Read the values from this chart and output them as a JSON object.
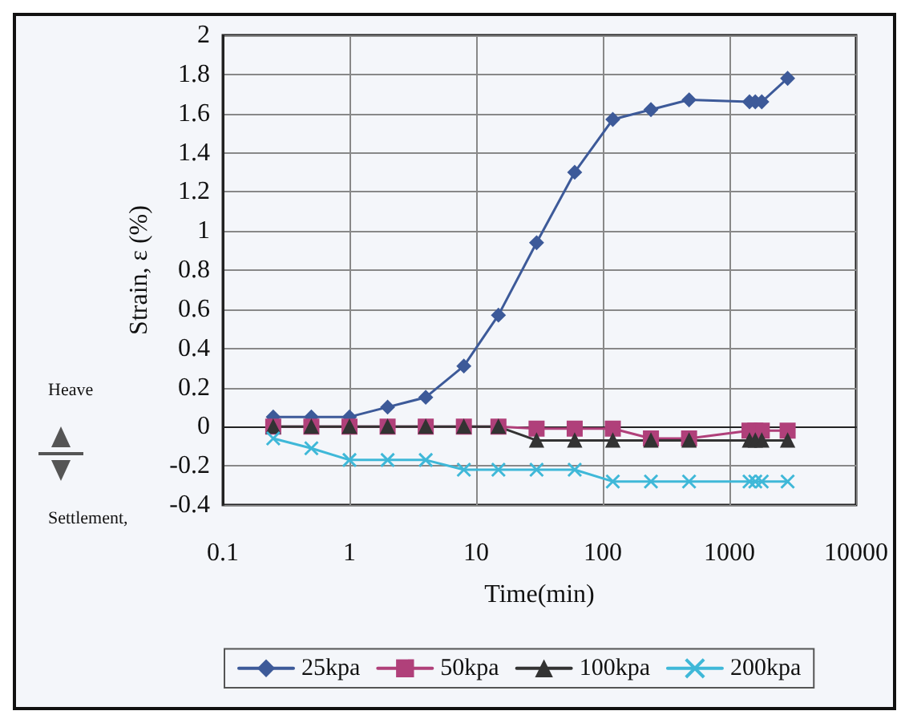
{
  "chart_data": {
    "type": "line",
    "xlabel": "Time(min)",
    "ylabel": "Strain, ε (%)",
    "annotations": [
      "Heave",
      "Settlement,"
    ],
    "x": [
      0.25,
      0.5,
      1,
      2,
      4,
      8,
      15,
      30,
      60,
      120,
      240,
      480,
      1440,
      1600,
      1800,
      2880
    ],
    "series": [
      {
        "name": "25kpa",
        "color": "#3d5a99",
        "marker": "diamond",
        "values": [
          0.05,
          0.05,
          0.05,
          0.1,
          0.15,
          0.31,
          0.57,
          0.94,
          1.3,
          1.57,
          1.62,
          1.67,
          1.66,
          1.66,
          1.66,
          1.78
        ]
      },
      {
        "name": "50kpa",
        "color": "#b0407a",
        "marker": "square",
        "values": [
          0,
          0,
          0,
          0,
          0,
          0,
          0,
          -0.01,
          -0.01,
          -0.01,
          -0.06,
          -0.06,
          -0.02,
          -0.02,
          -0.02,
          -0.02
        ]
      },
      {
        "name": "100kpa",
        "color": "#333333",
        "marker": "triangle",
        "values": [
          0,
          0,
          0,
          0,
          0,
          0,
          0,
          -0.07,
          -0.07,
          -0.07,
          -0.07,
          -0.07,
          -0.07,
          -0.07,
          -0.07,
          -0.07
        ]
      },
      {
        "name": "200kpa",
        "color": "#3fb8d8",
        "marker": "cross",
        "values": [
          -0.06,
          -0.11,
          -0.17,
          -0.17,
          -0.17,
          -0.22,
          -0.22,
          -0.22,
          -0.22,
          -0.28,
          -0.28,
          -0.28,
          -0.28,
          -0.28,
          -0.28,
          -0.28
        ]
      }
    ],
    "log": "x",
    "xlim": [
      0.1,
      10000
    ],
    "xticks": [
      0.1,
      1,
      10,
      100,
      1000,
      10000
    ],
    "ylim": [
      -0.4,
      2
    ],
    "yticks": [
      -0.4,
      -0.2,
      0,
      0.2,
      0.4,
      0.6,
      0.8,
      1,
      1.2,
      1.4,
      1.6,
      1.8,
      2
    ],
    "grid": true,
    "legend": "bottom",
    "line_style": "solid"
  }
}
